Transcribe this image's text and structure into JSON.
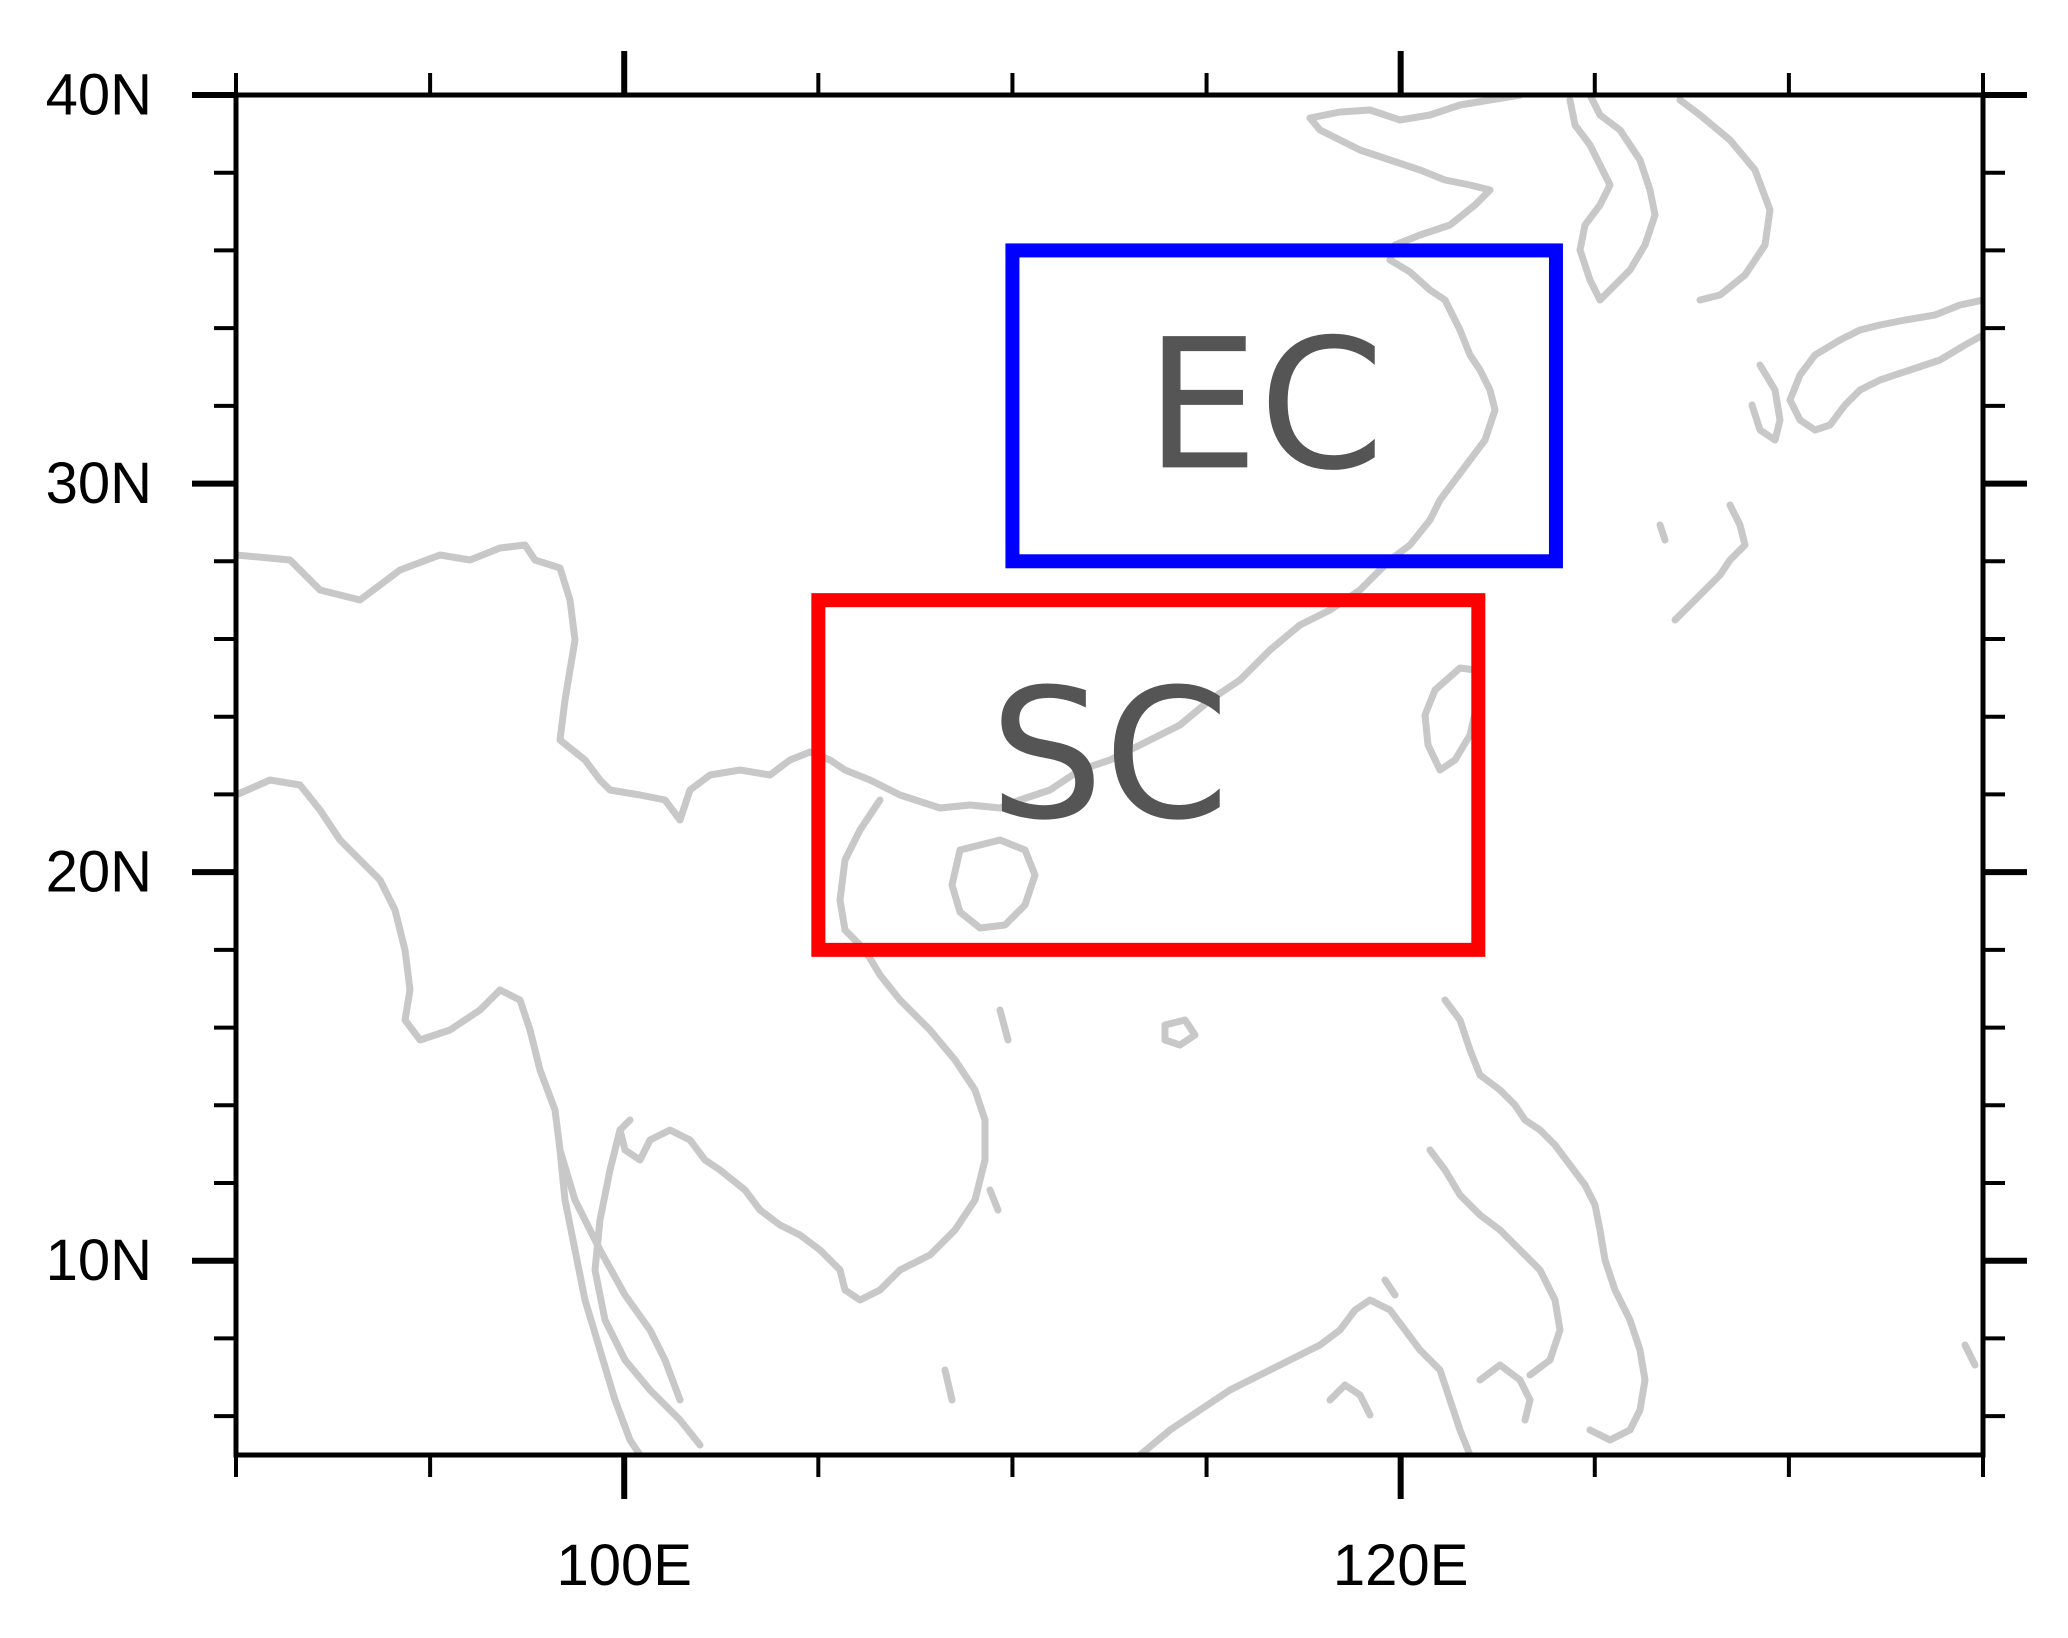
{
  "map": {
    "lon_range": [
      90,
      135
    ],
    "lat_range": [
      5,
      40
    ],
    "x_ticks": [
      {
        "lon": 100,
        "label": "100E"
      },
      {
        "lon": 120,
        "label": "120E"
      }
    ],
    "y_ticks": [
      {
        "lat": 40,
        "label": "40N"
      },
      {
        "lat": 30,
        "label": "30N"
      },
      {
        "lat": 20,
        "label": "20N"
      },
      {
        "lat": 10,
        "label": "10N"
      }
    ],
    "minor_lon_step": 5,
    "minor_lat_step": 2,
    "coastline_color": "#c8c8c8",
    "regions": [
      {
        "label": "EC",
        "color": "#0000ff",
        "lon": [
          110,
          124
        ],
        "lat": [
          28,
          36
        ],
        "label_center": [
          116.5,
          32
        ]
      },
      {
        "label": "SC",
        "color": "#ff0000",
        "lon": [
          105,
          122
        ],
        "lat": [
          18,
          27
        ],
        "label_center": [
          112.5,
          23
        ]
      }
    ]
  }
}
